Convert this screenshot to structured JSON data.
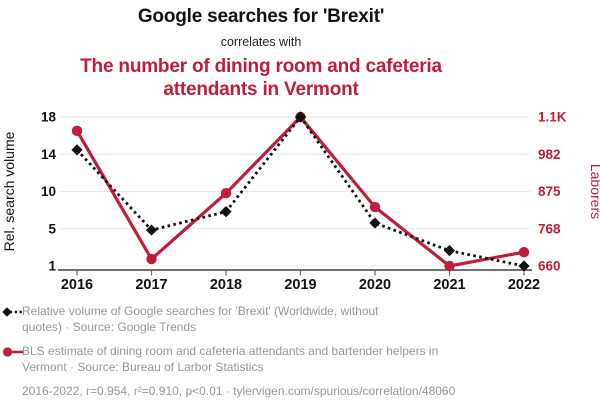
{
  "titles": {
    "main": "Google searches for 'Brexit'",
    "connector": "correlates with",
    "secondary_lines": [
      "The number of dining room and cafeteria",
      "attendants in Vermont"
    ]
  },
  "colors": {
    "accent_red": "#be1e3a",
    "series_black": "#111111",
    "legend_gray": "#969696",
    "grid": "#e8e8e8",
    "axis_line": "#1a1a1a",
    "tick_mark": "#666666"
  },
  "chart_data": {
    "type": "line",
    "x": [
      2016,
      2017,
      2018,
      2019,
      2020,
      2021,
      2022
    ],
    "x_ticks": [
      "2016",
      "2017",
      "2018",
      "2019",
      "2020",
      "2021",
      "2022"
    ],
    "series": [
      {
        "name": "BLS estimate of dining room and cafeteria attendants and bartender helpers in Vermont",
        "axis": "right",
        "color": "#be1e3a",
        "line_style": "solid",
        "marker": "circle",
        "values": [
          1050,
          680,
          870,
          1090,
          830,
          660,
          700
        ]
      },
      {
        "name": "Relative volume of Google searches for 'Brexit'",
        "axis": "left",
        "color": "#111111",
        "line_style": "dashed",
        "marker": "diamond",
        "values": [
          14.25,
          5.1,
          7.2,
          18,
          5.9,
          2.75,
          1
        ]
      }
    ],
    "left_axis": {
      "label": "Rel. search volume",
      "ticks": [
        "18",
        "14",
        "10",
        "5",
        "1"
      ],
      "range": [
        1,
        18
      ]
    },
    "right_axis": {
      "label": "Laborers",
      "ticks": [
        "1.1K",
        "982",
        "875",
        "768",
        "660"
      ],
      "range": [
        660,
        1090
      ]
    },
    "grid": true,
    "legend_position": "bottom"
  },
  "legend": {
    "items": [
      {
        "icon": "diamond-dashed",
        "lines": [
          "Relative volume of Google searches for 'Brexit' (Worldwide, without",
          "quotes) · Source: Google Trends"
        ]
      },
      {
        "icon": "circle-solid",
        "lines": [
          "BLS estimate of dining room and cafeteria attendants and bartender helpers in",
          "Vermont · Source: Bureau of Larbor Statistics"
        ]
      }
    ]
  },
  "footer": {
    "text": "2016-2022, r=0.954, r²=0.910, p<0.01 · tylervigen.com/spurious/correlation/48060"
  }
}
